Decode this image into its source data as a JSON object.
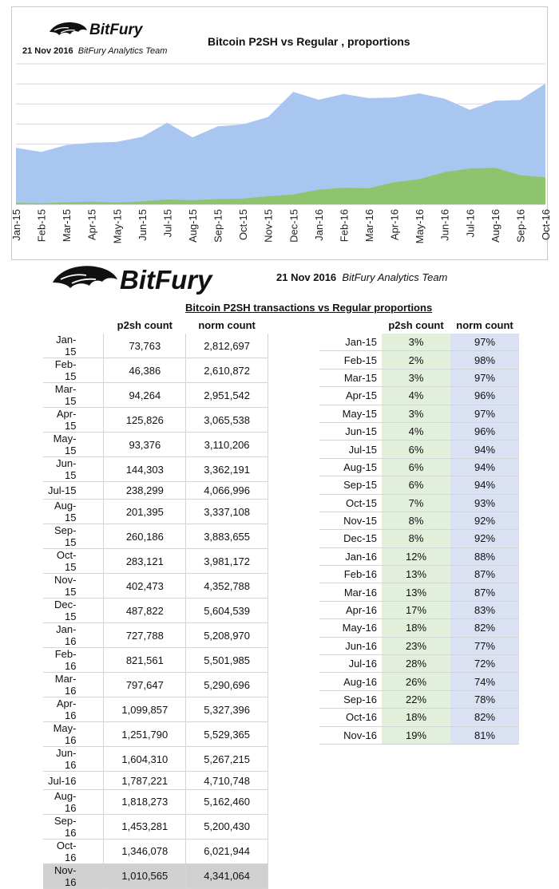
{
  "chart_header": {
    "brand": "BitFury",
    "date": "21 Nov 2016",
    "team": "BitFury Analytics Team",
    "title": "Bitcoin  P2SH vs Regular , proportions"
  },
  "table_header": {
    "brand": "BitFury",
    "date": "21 Nov 2016",
    "team": "BitFury Analytics Team",
    "title": "Bitcoin P2SH transactions vs Regular proportions"
  },
  "colors": {
    "regular": "#a8c6f0",
    "p2sh": "#8fc46f",
    "p2sh_cell": "#e2efda",
    "norm_cell": "#d9e1f2",
    "highlight": "#d0d0d0"
  },
  "chart_data": {
    "type": "area",
    "title": "Bitcoin  P2SH vs Regular , proportions",
    "xlabel": "",
    "ylabel": "",
    "categories": [
      "Jan-15",
      "Feb-15",
      "Mar-15",
      "Apr-15",
      "May-15",
      "Jun-15",
      "Jul-15",
      "Aug-15",
      "Sep-15",
      "Oct-15",
      "Nov-15",
      "Dec-15",
      "Jan-16",
      "Feb-16",
      "Mar-16",
      "Apr-16",
      "May-16",
      "Jun-16",
      "Jul-16",
      "Aug-16",
      "Sep-16",
      "Oct-16"
    ],
    "series": [
      {
        "name": "",
        "values": [
          2812697,
          2610872,
          2951542,
          3065538,
          3110206,
          3362191,
          4066996,
          3337108,
          3883655,
          3981172,
          4352788,
          5604539,
          5208970,
          5501985,
          5290696,
          5327396,
          5529365,
          5267215,
          4710748,
          5162460,
          5200430,
          6021944
        ]
      },
      {
        "name": "",
        "values": [
          73763,
          46386,
          94264,
          125826,
          93376,
          144303,
          238299,
          201395,
          260186,
          283121,
          402473,
          487822,
          727788,
          821561,
          797647,
          1099857,
          1251790,
          1604310,
          1787221,
          1818273,
          1453281,
          1346078
        ]
      }
    ],
    "ylim": [
      0,
      7000000
    ],
    "grid": true,
    "legend": "none"
  },
  "table": {
    "left_headers": [
      "",
      "p2sh count",
      "norm count"
    ],
    "right_headers": [
      "",
      "p2sh count",
      "norm count"
    ],
    "rows": [
      {
        "month": "Jan-15",
        "p2sh": "73,763",
        "norm": "2,812,697",
        "p2sh_pct": "3%",
        "norm_pct": "97%"
      },
      {
        "month": "Feb-15",
        "p2sh": "46,386",
        "norm": "2,610,872",
        "p2sh_pct": "2%",
        "norm_pct": "98%"
      },
      {
        "month": "Mar-15",
        "p2sh": "94,264",
        "norm": "2,951,542",
        "p2sh_pct": "3%",
        "norm_pct": "97%"
      },
      {
        "month": "Apr-15",
        "p2sh": "125,826",
        "norm": "3,065,538",
        "p2sh_pct": "4%",
        "norm_pct": "96%"
      },
      {
        "month": "May-15",
        "p2sh": "93,376",
        "norm": "3,110,206",
        "p2sh_pct": "3%",
        "norm_pct": "97%"
      },
      {
        "month": "Jun-15",
        "p2sh": "144,303",
        "norm": "3,362,191",
        "p2sh_pct": "4%",
        "norm_pct": "96%"
      },
      {
        "month": "Jul-15",
        "p2sh": "238,299",
        "norm": "4,066,996",
        "p2sh_pct": "6%",
        "norm_pct": "94%"
      },
      {
        "month": "Aug-15",
        "p2sh": "201,395",
        "norm": "3,337,108",
        "p2sh_pct": "6%",
        "norm_pct": "94%"
      },
      {
        "month": "Sep-15",
        "p2sh": "260,186",
        "norm": "3,883,655",
        "p2sh_pct": "6%",
        "norm_pct": "94%"
      },
      {
        "month": "Oct-15",
        "p2sh": "283,121",
        "norm": "3,981,172",
        "p2sh_pct": "7%",
        "norm_pct": "93%"
      },
      {
        "month": "Nov-15",
        "p2sh": "402,473",
        "norm": "4,352,788",
        "p2sh_pct": "8%",
        "norm_pct": "92%"
      },
      {
        "month": "Dec-15",
        "p2sh": "487,822",
        "norm": "5,604,539",
        "p2sh_pct": "8%",
        "norm_pct": "92%"
      },
      {
        "month": "Jan-16",
        "p2sh": "727,788",
        "norm": "5,208,970",
        "p2sh_pct": "12%",
        "norm_pct": "88%"
      },
      {
        "month": "Feb-16",
        "p2sh": "821,561",
        "norm": "5,501,985",
        "p2sh_pct": "13%",
        "norm_pct": "87%"
      },
      {
        "month": "Mar-16",
        "p2sh": "797,647",
        "norm": "5,290,696",
        "p2sh_pct": "13%",
        "norm_pct": "87%"
      },
      {
        "month": "Apr-16",
        "p2sh": "1,099,857",
        "norm": "5,327,396",
        "p2sh_pct": "17%",
        "norm_pct": "83%"
      },
      {
        "month": "May-16",
        "p2sh": "1,251,790",
        "norm": "5,529,365",
        "p2sh_pct": "18%",
        "norm_pct": "82%"
      },
      {
        "month": "Jun-16",
        "p2sh": "1,604,310",
        "norm": "5,267,215",
        "p2sh_pct": "23%",
        "norm_pct": "77%"
      },
      {
        "month": "Jul-16",
        "p2sh": "1,787,221",
        "norm": "4,710,748",
        "p2sh_pct": "28%",
        "norm_pct": "72%"
      },
      {
        "month": "Aug-16",
        "p2sh": "1,818,273",
        "norm": "5,162,460",
        "p2sh_pct": "26%",
        "norm_pct": "74%"
      },
      {
        "month": "Sep-16",
        "p2sh": "1,453,281",
        "norm": "5,200,430",
        "p2sh_pct": "22%",
        "norm_pct": "78%"
      },
      {
        "month": "Oct-16",
        "p2sh": "1,346,078",
        "norm": "6,021,944",
        "p2sh_pct": "18%",
        "norm_pct": "82%"
      },
      {
        "month": "Nov-16",
        "p2sh": "1,010,565",
        "norm": "4,341,064",
        "p2sh_pct": "19%",
        "norm_pct": "81%"
      }
    ]
  }
}
